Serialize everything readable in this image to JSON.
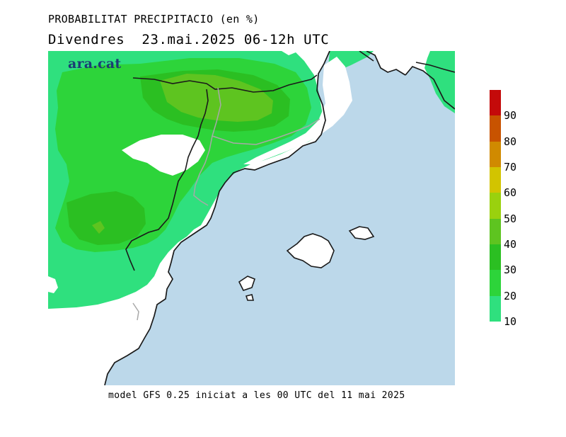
{
  "title_line1": "PROBABILITAT PRECIPITACIO (en %)",
  "title_line2": "Divendres  23.mai.2025 06-12h UTC",
  "logo_text": "ara.cat",
  "footer": "model GFS 0.25 iniciat a les 00 UTC del 11 mai 2025",
  "colors": {
    "sea": "#bcd8ea",
    "land_dry": "#ffffff",
    "coast": "#1a1a1a",
    "border_gray": "#a8a8a8"
  },
  "legend": {
    "levels": [
      {
        "from": 10,
        "to": 20,
        "color": "#2fe07e"
      },
      {
        "from": 20,
        "to": 30,
        "color": "#2dd43a"
      },
      {
        "from": 30,
        "to": 40,
        "color": "#2bbf22"
      },
      {
        "from": 40,
        "to": 50,
        "color": "#5ec420"
      },
      {
        "from": 50,
        "to": 60,
        "color": "#9ad10e"
      },
      {
        "from": 60,
        "to": 70,
        "color": "#d2c400"
      },
      {
        "from": 70,
        "to": 80,
        "color": "#d08a00"
      },
      {
        "from": 80,
        "to": 90,
        "color": "#c85300"
      },
      {
        "from": 90,
        "to": 100,
        "color": "#c40a0a"
      }
    ],
    "labels": [
      "10",
      "20",
      "30",
      "40",
      "50",
      "60",
      "70",
      "80",
      "90"
    ]
  }
}
